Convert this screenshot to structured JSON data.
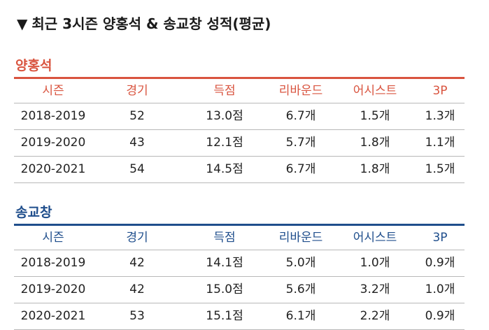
{
  "title": "최근 3시즌 양홍석 & 송교창 성적(평균)",
  "colors": {
    "player1": "#d9543f",
    "player2": "#1f4e8c"
  },
  "headers": [
    "시즌",
    "경기",
    "득점",
    "리바운드",
    "어시스트",
    "3P"
  ],
  "players": [
    {
      "name": "양홍석",
      "rows": [
        [
          "2018-2019",
          "52",
          "13.0점",
          "6.7개",
          "1.5개",
          "1.3개"
        ],
        [
          "2019-2020",
          "43",
          "12.1점",
          "5.7개",
          "1.8개",
          "1.1개"
        ],
        [
          "2020-2021",
          "54",
          "14.5점",
          "6.7개",
          "1.8개",
          "1.5개"
        ]
      ]
    },
    {
      "name": "송교창",
      "rows": [
        [
          "2018-2019",
          "42",
          "14.1점",
          "5.0개",
          "1.0개",
          "0.9개"
        ],
        [
          "2019-2020",
          "42",
          "15.0점",
          "5.6개",
          "3.2개",
          "1.0개"
        ],
        [
          "2020-2021",
          "53",
          "15.1점",
          "6.1개",
          "2.2개",
          "0.9개"
        ]
      ]
    }
  ]
}
